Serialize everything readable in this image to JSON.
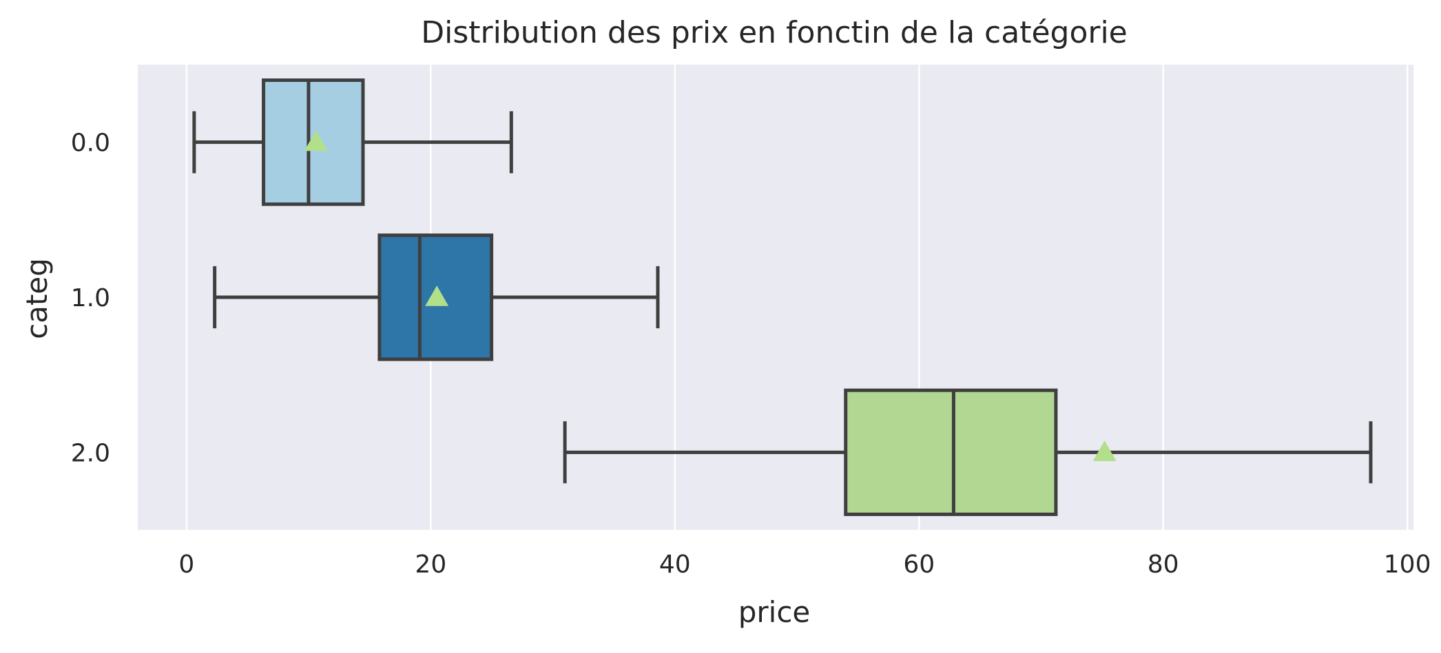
{
  "chart_data": {
    "type": "box",
    "title": "Distribution des prix en fonctin de la catégorie",
    "xlabel": "price",
    "ylabel": "categ",
    "xlim": [
      -4,
      100.5
    ],
    "xticks": [
      0,
      20,
      40,
      60,
      80,
      100
    ],
    "orientation": "horizontal",
    "grid": true,
    "grid_axis": "x",
    "background_color": "#EAEAF2",
    "grid_color": "#FFFFFF",
    "line_color": "#3F3F3F",
    "mean_marker_color": "#B2DF8A",
    "categories": [
      "0.0",
      "1.0",
      "2.0"
    ],
    "boxes": [
      {
        "category": "0.0",
        "whisker_low": 0.62,
        "q1": 6.3,
        "median": 9.99,
        "q3": 14.45,
        "whisker_high": 26.6,
        "mean": 10.6,
        "color": "#A6CEE3"
      },
      {
        "category": "1.0",
        "whisker_low": 2.3,
        "q1": 15.8,
        "median": 19.1,
        "q3": 24.98,
        "whisker_high": 38.6,
        "mean": 20.5,
        "color": "#2E75A8"
      },
      {
        "category": "2.0",
        "whisker_low": 30.99,
        "q1": 53.99,
        "median": 62.83,
        "q3": 71.21,
        "whisker_high": 97.0,
        "mean": 75.2,
        "color": "#B2D793"
      }
    ]
  }
}
